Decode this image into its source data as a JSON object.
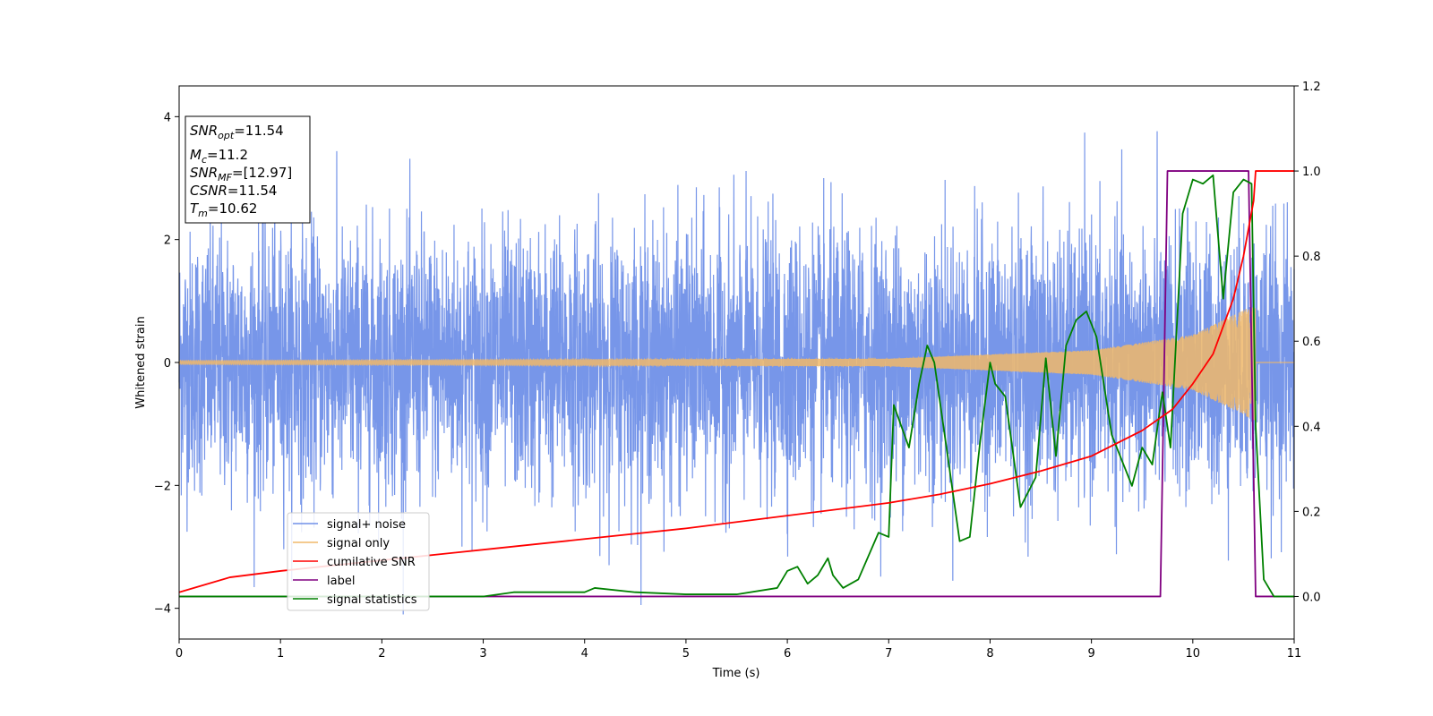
{
  "chart_data": {
    "type": "line",
    "xlabel": "Time (s)",
    "ylabel": "Whitened strain",
    "xlim": [
      0,
      11
    ],
    "ylim_left": [
      -4.5,
      4.5
    ],
    "ylim_right": [
      -0.1,
      1.2
    ],
    "x_ticks": [
      0,
      1,
      2,
      3,
      4,
      5,
      6,
      7,
      8,
      9,
      10,
      11
    ],
    "y_ticks_left": [
      -4,
      -2,
      0,
      2,
      4
    ],
    "y_ticks_right": [
      "0.0",
      "0.2",
      "0.4",
      "0.6",
      "0.8",
      "1.0",
      "1.2"
    ],
    "legend_position": "lower-left",
    "info_box": {
      "snr_opt": {
        "symbol": "SNR",
        "sub": "opt",
        "value": "=11.54"
      },
      "mc": {
        "symbol": "M",
        "sub": "c",
        "value": "=11.2"
      },
      "snr_mf": {
        "symbol": "SNR",
        "sub": "MF",
        "value": "=[12.97]"
      },
      "csnr": {
        "symbol": "CSNR",
        "sub": "",
        "value": "=11.54"
      },
      "tm": {
        "symbol": "T",
        "sub": "m",
        "value": "=10.62"
      }
    },
    "series": [
      {
        "name": "signal+ noise",
        "axis": "left",
        "color": "#7090e8",
        "description_range": [
          -4.1,
          4.2
        ]
      },
      {
        "name": "signal only",
        "axis": "left",
        "color": "#f0b86a",
        "envelope": {
          "x": [
            0,
            7,
            9,
            10,
            10.62
          ],
          "amplitude": [
            0.03,
            0.06,
            0.2,
            0.45,
            0.95
          ]
        }
      },
      {
        "name": "cumilative SNR",
        "axis": "right",
        "color": "#ff0000",
        "x": [
          0,
          0.5,
          1,
          2,
          3,
          4,
          5,
          6,
          7,
          7.5,
          8,
          8.5,
          9,
          9.5,
          9.8,
          10,
          10.2,
          10.4,
          10.5,
          10.6,
          10.62,
          11
        ],
        "values": [
          0.01,
          0.045,
          0.06,
          0.085,
          0.11,
          0.135,
          0.16,
          0.19,
          0.22,
          0.24,
          0.265,
          0.295,
          0.33,
          0.39,
          0.44,
          0.5,
          0.57,
          0.7,
          0.8,
          0.93,
          1.0,
          1.0
        ]
      },
      {
        "name": "label",
        "axis": "right",
        "color": "#800080",
        "x": [
          0,
          9.68,
          9.75,
          10.55,
          10.62,
          11
        ],
        "values": [
          0,
          0,
          1,
          1,
          0,
          0
        ]
      },
      {
        "name": "signal statistics",
        "axis": "right",
        "color": "#008000",
        "x": [
          0,
          3,
          3.3,
          3.5,
          4,
          4.1,
          4.5,
          5,
          5.5,
          5.9,
          6,
          6.1,
          6.2,
          6.3,
          6.4,
          6.45,
          6.55,
          6.7,
          6.9,
          7,
          7.05,
          7.2,
          7.3,
          7.38,
          7.45,
          7.6,
          7.7,
          7.8,
          7.9,
          8,
          8.05,
          8.15,
          8.3,
          8.45,
          8.55,
          8.65,
          8.75,
          8.85,
          8.95,
          9.05,
          9.2,
          9.4,
          9.5,
          9.6,
          9.7,
          9.78,
          9.85,
          9.9,
          10,
          10.1,
          10.2,
          10.3,
          10.4,
          10.5,
          10.58,
          10.62,
          10.7,
          10.8,
          11
        ],
        "values": [
          0,
          0.0,
          0.01,
          0.01,
          0.01,
          0.02,
          0.01,
          0.005,
          0.005,
          0.02,
          0.06,
          0.07,
          0.03,
          0.05,
          0.09,
          0.05,
          0.02,
          0.04,
          0.15,
          0.14,
          0.45,
          0.35,
          0.5,
          0.59,
          0.55,
          0.3,
          0.13,
          0.14,
          0.36,
          0.55,
          0.5,
          0.47,
          0.21,
          0.28,
          0.56,
          0.33,
          0.59,
          0.65,
          0.67,
          0.61,
          0.38,
          0.26,
          0.35,
          0.31,
          0.48,
          0.35,
          0.67,
          0.9,
          0.98,
          0.97,
          0.99,
          0.7,
          0.95,
          0.98,
          0.97,
          0.4,
          0.04,
          0.0,
          0.0
        ]
      }
    ]
  }
}
